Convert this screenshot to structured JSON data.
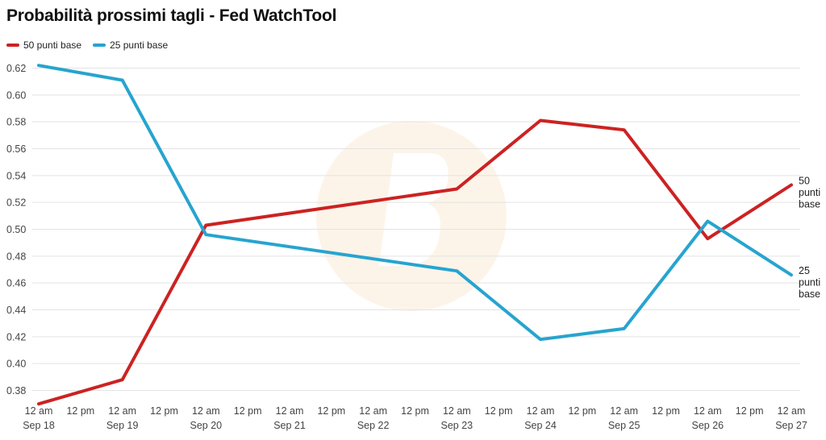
{
  "chart_data": {
    "type": "line",
    "title": "Probabilità prossimi tagli - Fed WatchTool",
    "x": [
      "2024-09-18",
      "2024-09-19",
      "2024-09-20",
      "2024-09-23",
      "2024-09-24",
      "2024-09-25",
      "2024-09-26",
      "2024-09-27"
    ],
    "x_tick_labels": [
      [
        "12 am",
        "Sep 18"
      ],
      [
        "12 pm",
        ""
      ],
      [
        "12 am",
        "Sep 19"
      ],
      [
        "12 pm",
        ""
      ],
      [
        "12 am",
        "Sep 20"
      ],
      [
        "12 pm",
        ""
      ],
      [
        "12 am",
        "Sep 21"
      ],
      [
        "12 pm",
        ""
      ],
      [
        "12 am",
        "Sep 22"
      ],
      [
        "12 pm",
        ""
      ],
      [
        "12 am",
        "Sep 23"
      ],
      [
        "12 pm",
        ""
      ],
      [
        "12 am",
        "Sep 24"
      ],
      [
        "12 pm",
        ""
      ],
      [
        "12 am",
        "Sep 25"
      ],
      [
        "12 pm",
        ""
      ],
      [
        "12 am",
        "Sep 26"
      ],
      [
        "12 pm",
        ""
      ],
      [
        "12 am",
        "Sep 27"
      ]
    ],
    "series": [
      {
        "name": "50 punti base",
        "color": "#cc2222",
        "end_label": [
          "50",
          "punti",
          "base"
        ],
        "values": [
          0.37,
          0.388,
          0.503,
          0.53,
          0.581,
          0.574,
          0.493,
          0.533
        ]
      },
      {
        "name": "25 punti base",
        "color": "#27a4cf",
        "end_label": [
          "25",
          "punti",
          "base"
        ],
        "values": [
          0.622,
          0.611,
          0.496,
          0.469,
          0.418,
          0.426,
          0.506,
          0.466
        ]
      }
    ],
    "y_ticks": [
      0.38,
      0.4,
      0.42,
      0.44,
      0.46,
      0.48,
      0.5,
      0.52,
      0.54,
      0.56,
      0.58,
      0.6,
      0.62
    ],
    "ylim": [
      0.37,
      0.625
    ],
    "grid": true,
    "legend": "top-left"
  }
}
